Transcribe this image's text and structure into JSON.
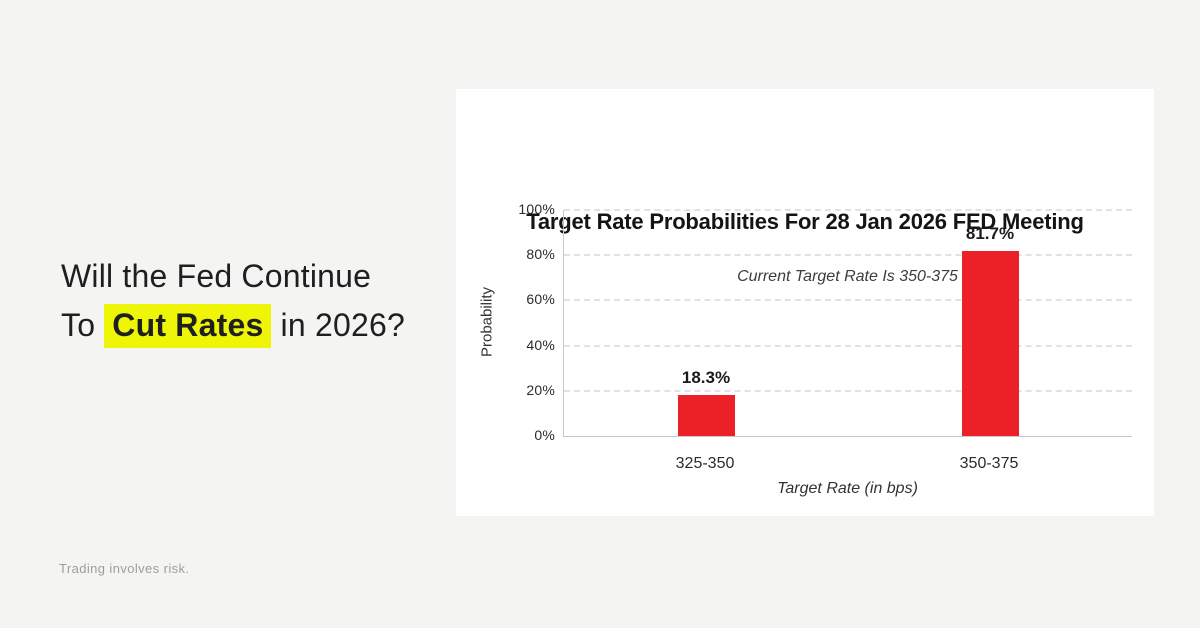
{
  "page": {
    "background_color": "#F4F4F3",
    "disclaimer": "Trading involves risk."
  },
  "headline": {
    "line1": "Will the Fed Continue",
    "line2_prefix": "To ",
    "highlight_text": "Cut Rates",
    "line2_suffix": " in 2026?",
    "text_color": "#1F1F1F",
    "highlight_color": "#EEF506"
  },
  "card": {
    "background_color": "#FFFFFF"
  },
  "chart_data": {
    "type": "bar",
    "title": "Target Rate Probabilities For 28 Jan 2026 FED Meeting",
    "subtitle": "Current Target Rate Is 350-375",
    "categories": [
      "325-350",
      "350-375"
    ],
    "values": [
      18.3,
      81.7
    ],
    "value_labels": [
      "18.3%",
      "81.7%"
    ],
    "xlabel": "Target Rate (in bps)",
    "ylabel": "Probability",
    "ylim": [
      0,
      100
    ],
    "ytick_step": 20,
    "ytick_labels": [
      "0%",
      "20%",
      "40%",
      "60%",
      "80%",
      "100%"
    ],
    "bar_color": "#EB2127",
    "grid": "horizontal-dashed",
    "legend": "none"
  }
}
